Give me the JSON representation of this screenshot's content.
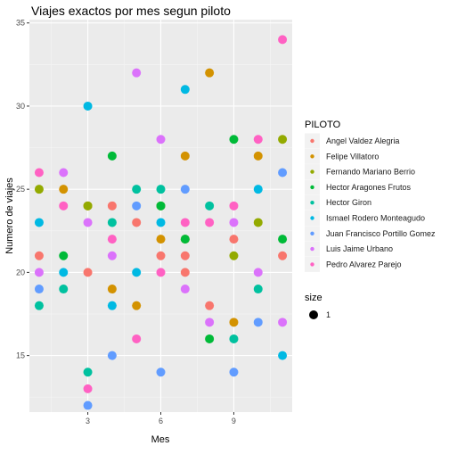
{
  "chart_data": {
    "type": "scatter",
    "title": "Viajes exactos por mes segun piloto",
    "xlabel": "Mes",
    "ylabel": "Numero de viajes",
    "xlim": [
      0.6,
      11.4
    ],
    "ylim": [
      11.6,
      35.2
    ],
    "x_ticks": [
      3,
      6,
      9
    ],
    "y_ticks": [
      15,
      20,
      25,
      30,
      35
    ],
    "grid": true,
    "legend": {
      "title": "PILOTO",
      "position": "right"
    },
    "size_legend": {
      "title": "size",
      "label": "1"
    },
    "series": [
      {
        "name": "Angel Valdez Alegria",
        "color": "#F8766D",
        "points": [
          [
            1,
            21
          ],
          [
            3,
            20
          ],
          [
            4,
            24
          ],
          [
            5,
            23
          ],
          [
            6,
            21
          ],
          [
            7,
            21
          ],
          [
            7,
            20
          ],
          [
            8,
            18
          ],
          [
            9,
            22
          ],
          [
            11,
            21
          ]
        ]
      },
      {
        "name": "Felipe Villatoro",
        "color": "#D39200",
        "points": [
          [
            2,
            25
          ],
          [
            3,
            24
          ],
          [
            4,
            19
          ],
          [
            5,
            18
          ],
          [
            6,
            22
          ],
          [
            7,
            27
          ],
          [
            8,
            32
          ],
          [
            9,
            17
          ],
          [
            10,
            27
          ]
        ]
      },
      {
        "name": "Fernando Mariano Berrio",
        "color": "#93AA00",
        "points": [
          [
            1,
            25
          ],
          [
            3,
            24
          ],
          [
            6,
            24
          ],
          [
            7,
            22
          ],
          [
            9,
            21
          ],
          [
            10,
            23
          ],
          [
            11,
            28
          ]
        ]
      },
      {
        "name": "Hector Aragones Frutos",
        "color": "#00BA38",
        "points": [
          [
            2,
            21
          ],
          [
            4,
            27
          ],
          [
            6,
            24
          ],
          [
            7,
            22
          ],
          [
            8,
            16
          ],
          [
            9,
            28
          ],
          [
            11,
            22
          ]
        ]
      },
      {
        "name": "Hector Giron",
        "color": "#00C19F",
        "points": [
          [
            1,
            18
          ],
          [
            2,
            19
          ],
          [
            3,
            14
          ],
          [
            4,
            23
          ],
          [
            5,
            25
          ],
          [
            6,
            25
          ],
          [
            8,
            24
          ],
          [
            9,
            16
          ],
          [
            10,
            19
          ]
        ]
      },
      {
        "name": "Ismael Rodero Monteagudo",
        "color": "#00B9E3",
        "points": [
          [
            1,
            23
          ],
          [
            2,
            20
          ],
          [
            3,
            30
          ],
          [
            4,
            18
          ],
          [
            5,
            20
          ],
          [
            6,
            23
          ],
          [
            7,
            31
          ],
          [
            10,
            25
          ],
          [
            11,
            15
          ]
        ]
      },
      {
        "name": "Juan Francisco Portillo Gomez",
        "color": "#619CFF",
        "points": [
          [
            1,
            19
          ],
          [
            3,
            12
          ],
          [
            4,
            15
          ],
          [
            5,
            24
          ],
          [
            6,
            14
          ],
          [
            7,
            25
          ],
          [
            9,
            14
          ],
          [
            10,
            17
          ],
          [
            11,
            26
          ]
        ]
      },
      {
        "name": "Luis Jaime Urbano",
        "color": "#DB72FB",
        "points": [
          [
            1,
            20
          ],
          [
            2,
            26
          ],
          [
            3,
            23
          ],
          [
            4,
            21
          ],
          [
            5,
            32
          ],
          [
            6,
            28
          ],
          [
            7,
            19
          ],
          [
            8,
            17
          ],
          [
            9,
            23
          ],
          [
            10,
            20
          ],
          [
            11,
            17
          ]
        ]
      },
      {
        "name": "Pedro Alvarez Parejo",
        "color": "#FF61C3",
        "points": [
          [
            1,
            26
          ],
          [
            2,
            24
          ],
          [
            3,
            13
          ],
          [
            4,
            22
          ],
          [
            5,
            16
          ],
          [
            6,
            20
          ],
          [
            7,
            23
          ],
          [
            8,
            23
          ],
          [
            9,
            24
          ],
          [
            10,
            28
          ],
          [
            11,
            34
          ]
        ]
      }
    ]
  }
}
